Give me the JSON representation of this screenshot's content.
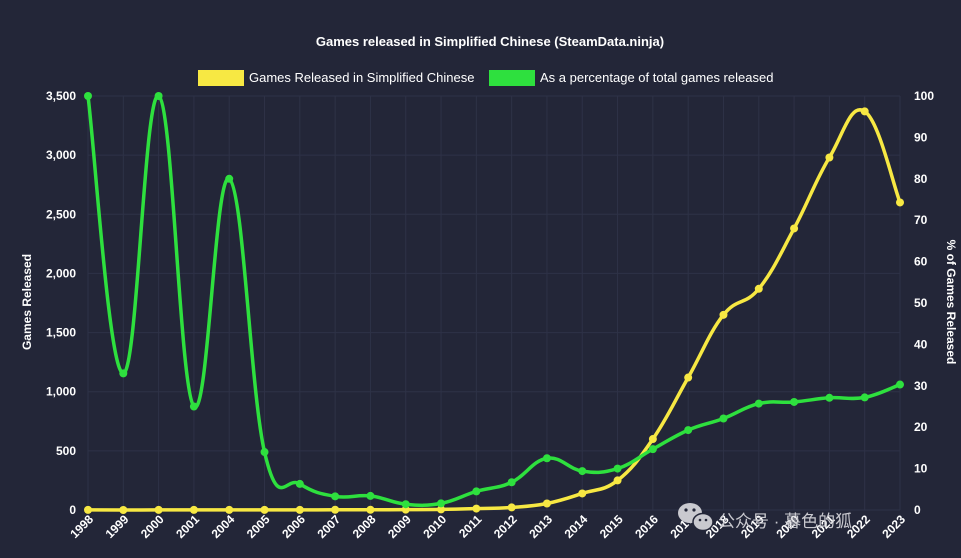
{
  "chart_data": {
    "type": "line",
    "title": "Games released in Simplified Chinese (SteamData.ninja)",
    "categories": [
      "1998",
      "1999",
      "2000",
      "2001",
      "2004",
      "2005",
      "2006",
      "2007",
      "2008",
      "2009",
      "2010",
      "2011",
      "2012",
      "2013",
      "2014",
      "2015",
      "2016",
      "2017",
      "2018",
      "2019",
      "2020",
      "2021",
      "2022",
      "2023"
    ],
    "series": [
      {
        "name": "Games Released in Simplified Chinese",
        "axis": "left",
        "color": "#f7e843",
        "values": [
          1,
          0,
          1,
          1,
          1,
          1,
          1,
          2,
          2,
          3,
          5,
          12,
          22,
          55,
          140,
          250,
          600,
          1120,
          1650,
          1870,
          2380,
          2980,
          3370,
          2600
        ]
      },
      {
        "name": "As a percentage of total games released",
        "axis": "right",
        "color": "#2ee03e",
        "values": [
          100,
          33,
          100,
          25,
          80,
          14,
          6.3,
          3.3,
          3.4,
          1.4,
          1.6,
          4.5,
          6.7,
          12.5,
          9.4,
          10,
          14.7,
          19.3,
          22.1,
          25.7,
          26.1,
          27.1,
          27.2,
          30.3
        ]
      }
    ],
    "ylabel": "Games Released",
    "y2label": "% of Games Released",
    "ylim": [
      0,
      3500
    ],
    "yticks": [
      "0",
      "500",
      "1,000",
      "1,500",
      "2,000",
      "2,500",
      "3,000",
      "3,500"
    ],
    "y2lim": [
      0,
      100
    ],
    "y2ticks": [
      "0",
      "10",
      "20",
      "30",
      "40",
      "50",
      "60",
      "70",
      "80",
      "90",
      "100"
    ],
    "legend": "top",
    "grid": true,
    "background": "#232638"
  },
  "watermark": {
    "icon": "wechat-icon",
    "text": "公众号 · 暮色的狐"
  }
}
